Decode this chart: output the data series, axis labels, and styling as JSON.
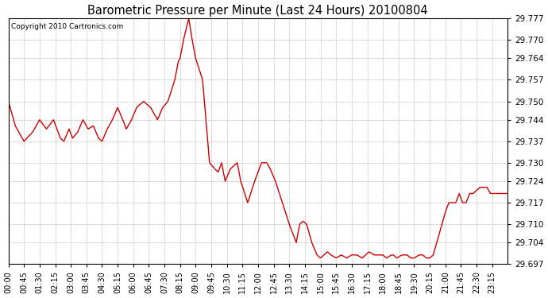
{
  "title": "Barometric Pressure per Minute (Last 24 Hours) 20100804",
  "copyright": "Copyright 2010 Cartronics.com",
  "line_color": "#cc0000",
  "background_color": "#ffffff",
  "grid_color": "#bbbbbb",
  "ylim": [
    29.697,
    29.777
  ],
  "yticks": [
    29.697,
    29.704,
    29.71,
    29.717,
    29.724,
    29.73,
    29.737,
    29.744,
    29.75,
    29.757,
    29.764,
    29.77,
    29.777
  ],
  "xtick_labels": [
    "00:00",
    "00:45",
    "01:30",
    "02:15",
    "03:00",
    "03:45",
    "04:30",
    "05:15",
    "06:00",
    "06:45",
    "07:30",
    "08:15",
    "09:00",
    "09:45",
    "10:30",
    "11:15",
    "12:00",
    "12:45",
    "13:30",
    "14:15",
    "15:00",
    "15:45",
    "16:30",
    "17:15",
    "18:00",
    "18:45",
    "19:30",
    "20:15",
    "21:00",
    "21:45",
    "22:30",
    "23:15"
  ],
  "keypoints": [
    [
      0,
      29.75
    ],
    [
      20,
      29.742
    ],
    [
      45,
      29.737
    ],
    [
      70,
      29.74
    ],
    [
      90,
      29.744
    ],
    [
      110,
      29.741
    ],
    [
      130,
      29.744
    ],
    [
      150,
      29.738
    ],
    [
      160,
      29.737
    ],
    [
      175,
      29.741
    ],
    [
      185,
      29.738
    ],
    [
      200,
      29.74
    ],
    [
      215,
      29.744
    ],
    [
      230,
      29.741
    ],
    [
      245,
      29.742
    ],
    [
      260,
      29.738
    ],
    [
      270,
      29.737
    ],
    [
      285,
      29.741
    ],
    [
      300,
      29.744
    ],
    [
      315,
      29.748
    ],
    [
      330,
      29.744
    ],
    [
      340,
      29.741
    ],
    [
      355,
      29.744
    ],
    [
      370,
      29.748
    ],
    [
      390,
      29.75
    ],
    [
      410,
      29.748
    ],
    [
      430,
      29.744
    ],
    [
      445,
      29.748
    ],
    [
      460,
      29.75
    ],
    [
      480,
      29.757
    ],
    [
      490,
      29.763
    ],
    [
      495,
      29.764
    ],
    [
      505,
      29.77
    ],
    [
      520,
      29.777
    ],
    [
      530,
      29.77
    ],
    [
      540,
      29.764
    ],
    [
      560,
      29.757
    ],
    [
      580,
      29.73
    ],
    [
      595,
      29.728
    ],
    [
      605,
      29.727
    ],
    [
      615,
      29.73
    ],
    [
      625,
      29.724
    ],
    [
      640,
      29.728
    ],
    [
      660,
      29.73
    ],
    [
      670,
      29.724
    ],
    [
      690,
      29.717
    ],
    [
      710,
      29.724
    ],
    [
      730,
      29.73
    ],
    [
      745,
      29.73
    ],
    [
      755,
      29.728
    ],
    [
      770,
      29.724
    ],
    [
      790,
      29.717
    ],
    [
      810,
      29.71
    ],
    [
      830,
      29.704
    ],
    [
      840,
      29.71
    ],
    [
      850,
      29.711
    ],
    [
      860,
      29.71
    ],
    [
      875,
      29.704
    ],
    [
      890,
      29.7
    ],
    [
      900,
      29.699
    ],
    [
      910,
      29.7
    ],
    [
      920,
      29.701
    ],
    [
      930,
      29.7
    ],
    [
      945,
      29.699
    ],
    [
      960,
      29.7
    ],
    [
      975,
      29.699
    ],
    [
      990,
      29.7
    ],
    [
      1005,
      29.7
    ],
    [
      1020,
      29.699
    ],
    [
      1030,
      29.7
    ],
    [
      1040,
      29.701
    ],
    [
      1055,
      29.7
    ],
    [
      1070,
      29.7
    ],
    [
      1080,
      29.7
    ],
    [
      1090,
      29.699
    ],
    [
      1105,
      29.7
    ],
    [
      1110,
      29.7
    ],
    [
      1120,
      29.699
    ],
    [
      1135,
      29.7
    ],
    [
      1150,
      29.7
    ],
    [
      1160,
      29.699
    ],
    [
      1170,
      29.699
    ],
    [
      1185,
      29.7
    ],
    [
      1195,
      29.7
    ],
    [
      1205,
      29.699
    ],
    [
      1215,
      29.699
    ],
    [
      1225,
      29.7
    ],
    [
      1235,
      29.704
    ],
    [
      1250,
      29.71
    ],
    [
      1260,
      29.714
    ],
    [
      1270,
      29.717
    ],
    [
      1280,
      29.717
    ],
    [
      1290,
      29.717
    ],
    [
      1300,
      29.72
    ],
    [
      1310,
      29.717
    ],
    [
      1320,
      29.717
    ],
    [
      1330,
      29.72
    ],
    [
      1340,
      29.72
    ],
    [
      1350,
      29.721
    ],
    [
      1360,
      29.722
    ],
    [
      1370,
      29.722
    ],
    [
      1380,
      29.722
    ],
    [
      1390,
      29.72
    ],
    [
      1400,
      29.72
    ],
    [
      1410,
      29.72
    ],
    [
      1420,
      29.72
    ],
    [
      1430,
      29.72
    ],
    [
      1439,
      29.72
    ]
  ]
}
